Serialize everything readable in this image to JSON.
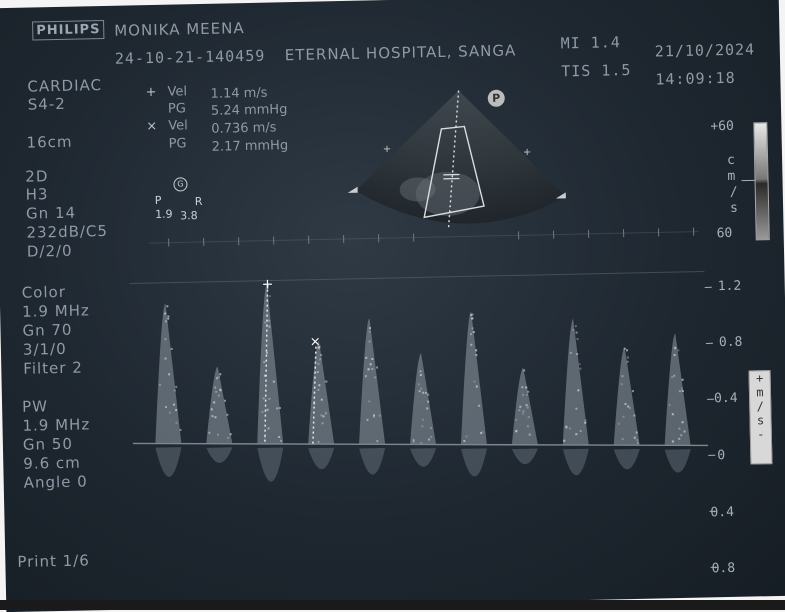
{
  "header": {
    "brand": "PHILIPS",
    "patient_name": "MONIKA MEENA",
    "study_id": "24-10-21-140459",
    "institution": "ETERNAL HOSPITAL, SANGA",
    "mi": "MI 1.4",
    "tis": "TIS 1.5",
    "date": "21/10/2024",
    "time": "14:09:18"
  },
  "left_panel": {
    "preset": "CARDIAC",
    "probe": "S4-2",
    "depth": "16cm",
    "mode_2d": {
      "title": "2D",
      "harmonic": "H3",
      "gain": "Gn 14",
      "dynamic_range": "232dB/C5",
      "persistence": "D/2/0"
    },
    "color": {
      "title": "Color",
      "freq": "1.9 MHz",
      "gain": "Gn 70",
      "settings": "3/1/0",
      "filter": "Filter 2"
    },
    "pw": {
      "title": "PW",
      "freq": "1.9 MHz",
      "gain": "Gn 50",
      "depth": "9.6 cm",
      "angle": "Angle 0"
    },
    "print": "Print 1/6"
  },
  "measurements": [
    {
      "marker": "+",
      "label": "Vel",
      "value": "1.14 m/s"
    },
    {
      "marker": "",
      "label": "PG",
      "value": "5.24 mmHg"
    },
    {
      "marker": "×",
      "label": "Vel",
      "value": "0.736 m/s"
    },
    {
      "marker": "",
      "label": "PG",
      "value": "2.17 mmHg"
    }
  ],
  "orientation_mini": {
    "badge": "G",
    "p": "P",
    "r": "R",
    "left_val": "1.9",
    "right_val": "3.8"
  },
  "color_scale": {
    "top": "+60",
    "unit": [
      "c",
      "m",
      "/",
      "s"
    ],
    "bottom": "60"
  },
  "doppler_scale": {
    "labels": [
      "1.2",
      "0.8",
      "0.4",
      "0",
      "0.4",
      "0.8"
    ],
    "unit_box": [
      "+",
      "m",
      "/",
      "s",
      "-"
    ]
  },
  "doppler_data": {
    "baseline_velocity": 0,
    "peak_velocities_m_s": [
      1.0,
      0.55,
      1.14,
      0.736,
      0.9,
      0.65,
      0.95,
      0.55,
      0.9,
      0.7,
      0.8
    ]
  },
  "badge_p": "P",
  "cursor_markers": [
    "+",
    "×"
  ]
}
